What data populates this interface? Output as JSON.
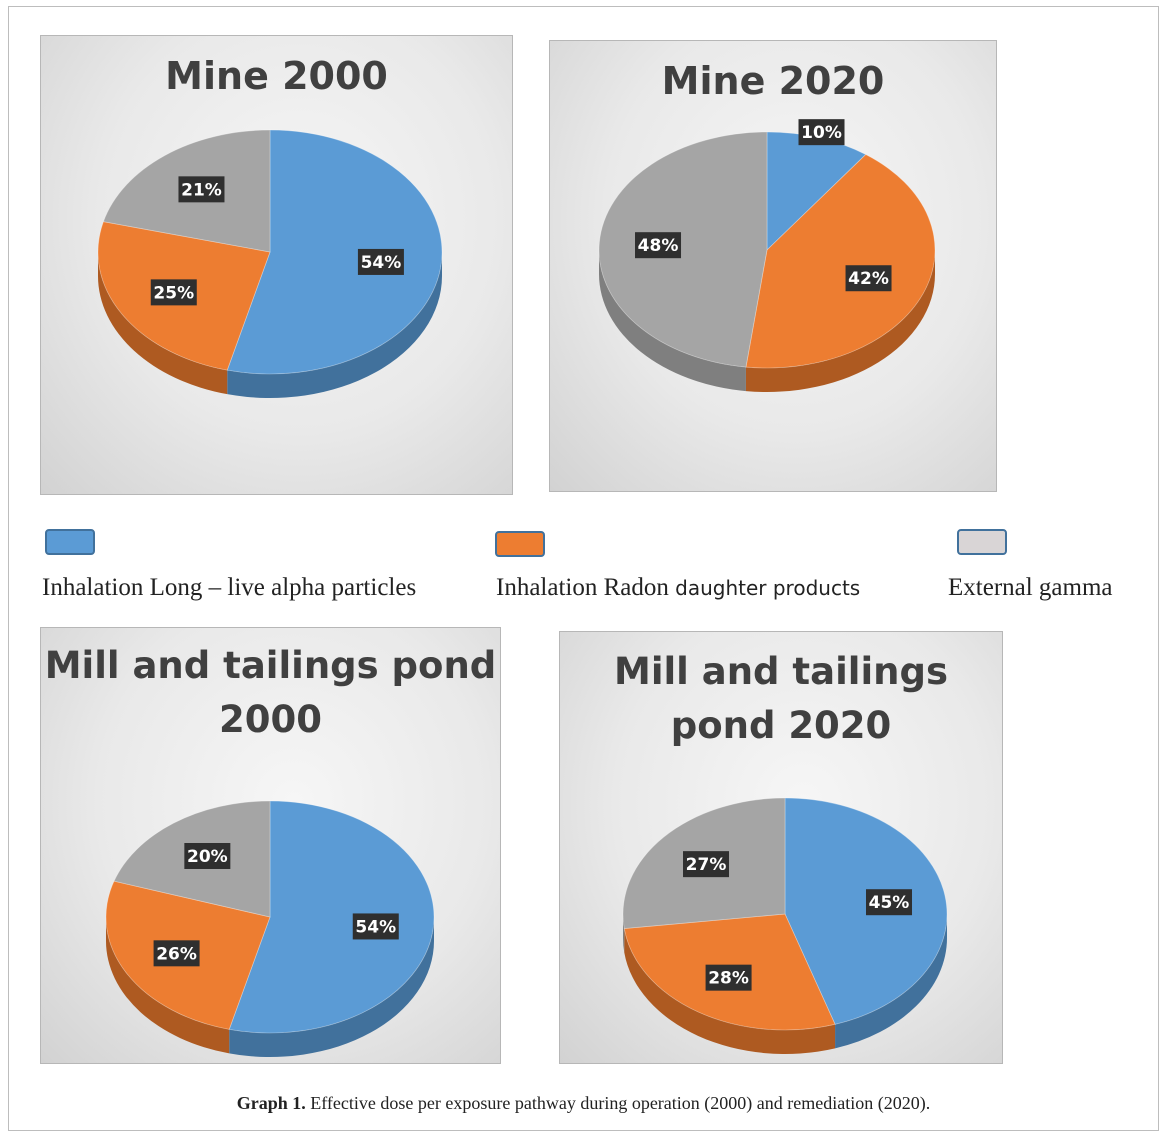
{
  "chart_data": [
    {
      "type": "pie",
      "title": "Mine 2000",
      "categories": [
        "Inhalation Long – live alpha particles",
        "Inhalation Radon daughter products",
        "External gamma"
      ],
      "values": [
        54,
        25,
        21
      ],
      "labels": [
        "54%",
        "25%",
        "21%"
      ]
    },
    {
      "type": "pie",
      "title": "Mine 2020",
      "categories": [
        "Inhalation Long – live alpha particles",
        "Inhalation Radon daughter products",
        "External gamma"
      ],
      "values": [
        10,
        42,
        48
      ],
      "labels": [
        "10%",
        "42%",
        "48%"
      ]
    },
    {
      "type": "pie",
      "title": "Mill and tailings pond 2000",
      "title_lines": [
        "Mill and tailings pond",
        "2000"
      ],
      "categories": [
        "Inhalation Long – live alpha particles",
        "Inhalation Radon daughter products",
        "External gamma"
      ],
      "values": [
        54,
        26,
        20
      ],
      "labels": [
        "54%",
        "26%",
        "20%"
      ]
    },
    {
      "type": "pie",
      "title": "Mill and tailings pond 2020",
      "title_lines": [
        "Mill and tailings",
        "pond 2020"
      ],
      "categories": [
        "Inhalation Long – live alpha particles",
        "Inhalation Radon daughter products",
        "External gamma"
      ],
      "values": [
        45,
        28,
        27
      ],
      "labels": [
        "45%",
        "28%",
        "27%"
      ]
    }
  ],
  "legend": [
    {
      "label_a": "Inhalation Long – live alpha particles",
      "label_b": "",
      "color": "#5b9bd5"
    },
    {
      "label_a": "Inhalation Radon",
      "label_b": "daughter products",
      "color": "#ed7d31"
    },
    {
      "label_a": "External gamma",
      "label_b": "",
      "color": "#d9d5d6"
    }
  ],
  "colors": {
    "blue": "#5b9bd5",
    "orange": "#ed7d31",
    "gray": "#a5a5a5"
  },
  "caption": {
    "label": "Graph 1.",
    "text": "Effective dose per exposure pathway during operation (2000) and remediation (2020)."
  }
}
